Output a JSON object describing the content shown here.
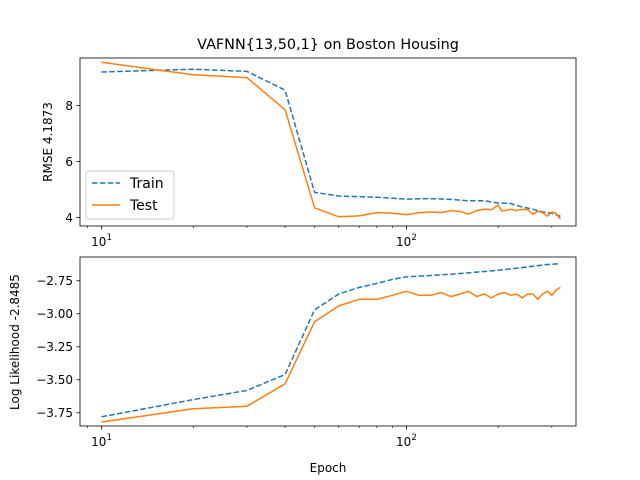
{
  "chart_data": [
    {
      "type": "line",
      "title": "VAFNN{13,50,1} on Boston Housing",
      "xlabel": "",
      "ylabel": "RMSE 4.1873",
      "xscale": "log",
      "xlim": [
        8.5,
        360
      ],
      "ylim": [
        3.7,
        9.7
      ],
      "xticks": [
        {
          "value": 10,
          "base": "10",
          "exp": "1"
        },
        {
          "value": 100,
          "base": "10",
          "exp": "2"
        }
      ],
      "yticks": [
        {
          "value": 4,
          "label": "4"
        },
        {
          "value": 6,
          "label": "6"
        },
        {
          "value": 8,
          "label": "8"
        }
      ],
      "legend": {
        "position": "lower-left",
        "entries": [
          "Train",
          "Test"
        ]
      },
      "series": [
        {
          "name": "Train",
          "style": "dashed",
          "color": "#1f77b4",
          "x": [
            10,
            20,
            30,
            40,
            50,
            60,
            80,
            100,
            110,
            120,
            140,
            160,
            180,
            200,
            220,
            240,
            260,
            280,
            300,
            320
          ],
          "y": [
            9.2,
            9.3,
            9.22,
            8.55,
            4.9,
            4.77,
            4.73,
            4.66,
            4.67,
            4.68,
            4.65,
            4.6,
            4.6,
            4.52,
            4.5,
            4.38,
            4.3,
            4.2,
            4.15,
            4.05
          ]
        },
        {
          "name": "Test",
          "style": "solid",
          "color": "#ff7f0e",
          "x": [
            10,
            20,
            30,
            40,
            50,
            60,
            70,
            80,
            90,
            100,
            110,
            120,
            130,
            140,
            150,
            160,
            170,
            180,
            190,
            200,
            205,
            210,
            220,
            230,
            240,
            250,
            260,
            270,
            280,
            290,
            300,
            310,
            320
          ],
          "y": [
            9.55,
            9.1,
            9.0,
            7.85,
            4.35,
            4.03,
            4.06,
            4.18,
            4.16,
            4.1,
            4.17,
            4.2,
            4.18,
            4.25,
            4.22,
            4.12,
            4.25,
            4.3,
            4.28,
            4.45,
            4.25,
            4.25,
            4.3,
            4.25,
            4.3,
            4.28,
            4.12,
            4.22,
            4.18,
            4.05,
            4.2,
            4.15,
            3.95
          ]
        }
      ]
    },
    {
      "type": "line",
      "title": "",
      "xlabel": "Epoch",
      "ylabel": "Log Likelihood -2.8485",
      "xscale": "log",
      "xlim": [
        8.5,
        360
      ],
      "ylim": [
        -3.85,
        -2.57
      ],
      "xticks": [
        {
          "value": 10,
          "base": "10",
          "exp": "1"
        },
        {
          "value": 100,
          "base": "10",
          "exp": "2"
        }
      ],
      "yticks": [
        {
          "value": -3.75,
          "label": "−3.75"
        },
        {
          "value": -3.5,
          "label": "−3.50"
        },
        {
          "value": -3.25,
          "label": "−3.25"
        },
        {
          "value": -3.0,
          "label": "−3.00"
        },
        {
          "value": -2.75,
          "label": "−2.75"
        }
      ],
      "series": [
        {
          "name": "Train",
          "style": "dashed",
          "color": "#1f77b4",
          "x": [
            10,
            20,
            30,
            40,
            50,
            60,
            70,
            80,
            90,
            100,
            120,
            140,
            160,
            180,
            200,
            220,
            240,
            260,
            280,
            300,
            320
          ],
          "y": [
            -3.78,
            -3.65,
            -3.58,
            -3.46,
            -2.97,
            -2.85,
            -2.8,
            -2.77,
            -2.74,
            -2.72,
            -2.71,
            -2.7,
            -2.69,
            -2.68,
            -2.67,
            -2.66,
            -2.65,
            -2.64,
            -2.63,
            -2.625,
            -2.62
          ]
        },
        {
          "name": "Test",
          "style": "solid",
          "color": "#ff7f0e",
          "x": [
            10,
            20,
            30,
            40,
            50,
            60,
            70,
            80,
            90,
            100,
            110,
            120,
            130,
            140,
            150,
            160,
            170,
            180,
            190,
            200,
            210,
            220,
            230,
            240,
            250,
            260,
            270,
            280,
            290,
            300,
            310,
            320
          ],
          "y": [
            -3.82,
            -3.72,
            -3.7,
            -3.53,
            -3.06,
            -2.94,
            -2.89,
            -2.89,
            -2.86,
            -2.83,
            -2.86,
            -2.86,
            -2.84,
            -2.87,
            -2.85,
            -2.83,
            -2.87,
            -2.85,
            -2.88,
            -2.85,
            -2.84,
            -2.86,
            -2.85,
            -2.88,
            -2.85,
            -2.85,
            -2.89,
            -2.85,
            -2.83,
            -2.86,
            -2.82,
            -2.8
          ]
        }
      ]
    }
  ]
}
